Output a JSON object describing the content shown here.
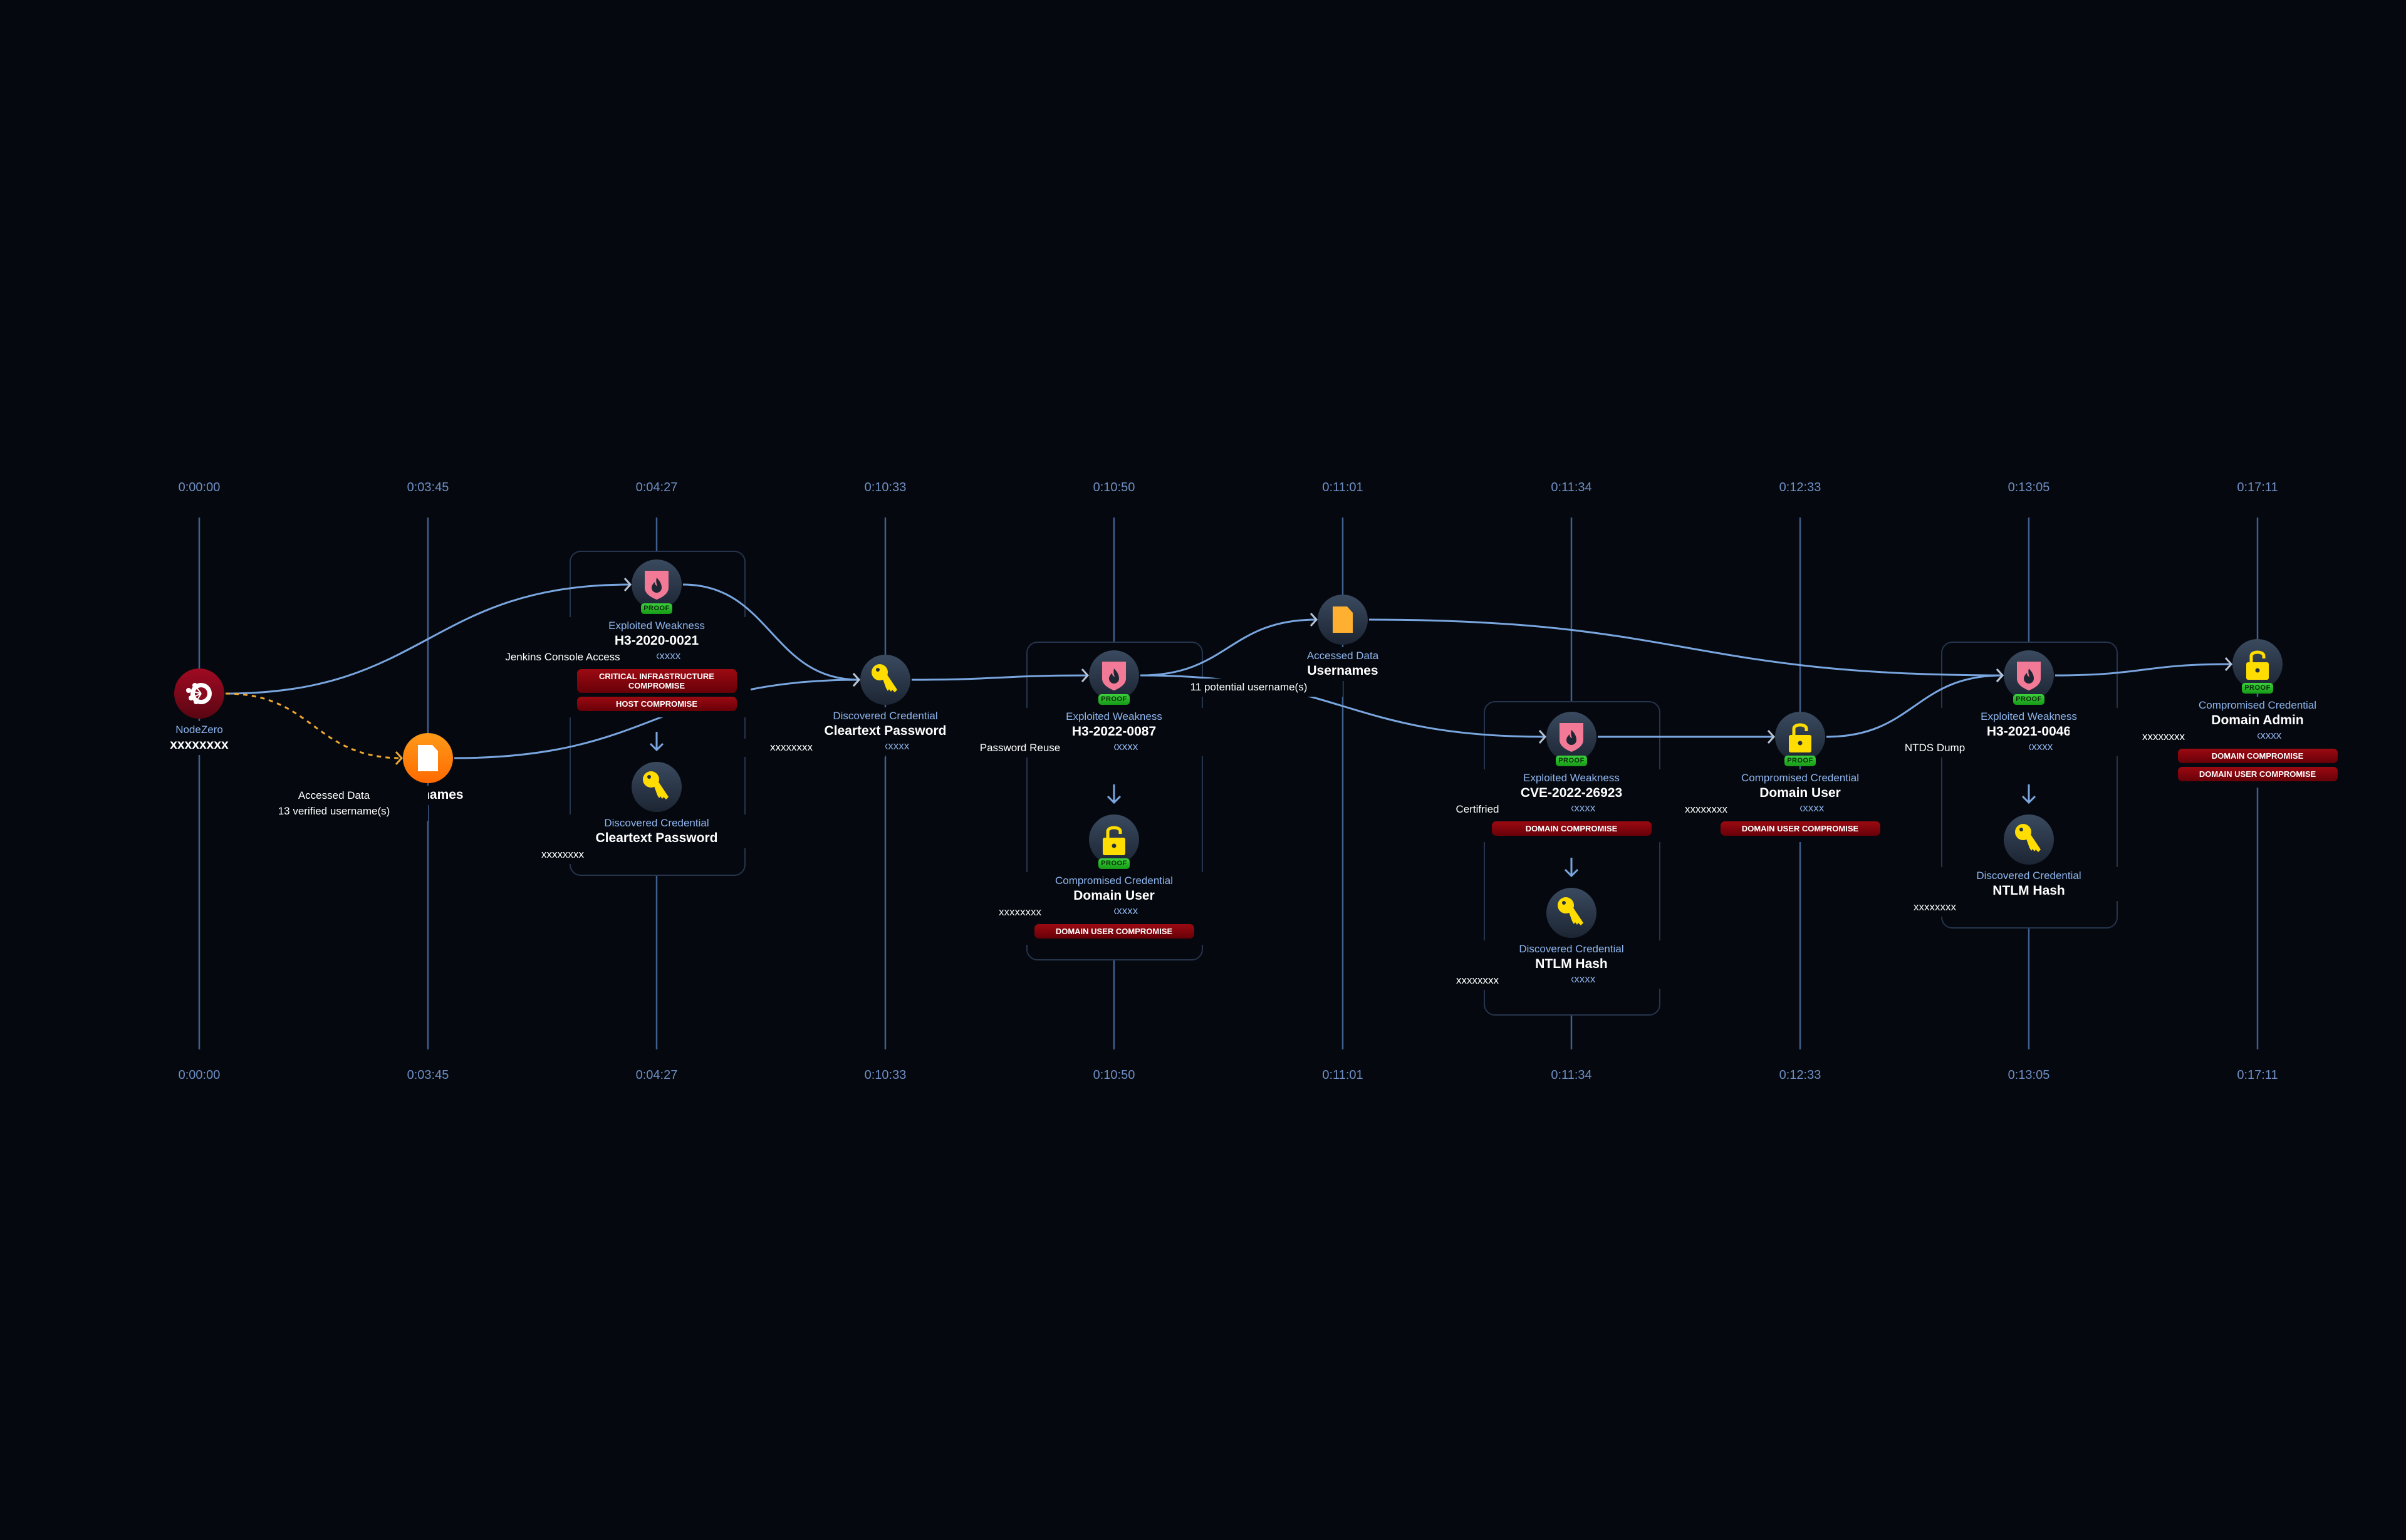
{
  "timeline": {
    "times": [
      "0:00:00",
      "0:03:45",
      "0:04:27",
      "0:10:33",
      "0:10:50",
      "0:11:01",
      "0:11:34",
      "0:12:33",
      "0:13:05",
      "0:17:11"
    ]
  },
  "colors": {
    "background": "#05090f",
    "timeline_line": "#3f5f8f",
    "edge": "#7aa6e0",
    "edge_dashed": "#f0a830",
    "category_text": "#8fb5ee",
    "badge_red": "#9c0a12",
    "proof_green": "#3bd13b",
    "shield_pink": "#f27a96",
    "credential_yellow": "#ffdd00",
    "data_orange": "#ffb030"
  },
  "proof_label": "PROOF",
  "nodes": [
    {
      "id": "nodezero",
      "icon": "nodezero-logo-icon",
      "proof": false,
      "lines": [
        {
          "text": "NodeZero",
          "kind": "category"
        },
        {
          "text": "xxxxxxxx",
          "kind": "title"
        }
      ],
      "badges": []
    },
    {
      "id": "usernames-13",
      "icon": "file-icon-orange",
      "proof": false,
      "lines": [
        {
          "text": "Accessed Data",
          "kind": "text"
        },
        {
          "text": "Usernames",
          "kind": "title"
        },
        {
          "text": "13 verified username(s)",
          "kind": "text"
        }
      ],
      "badges": []
    },
    {
      "id": "h3-2020-0021",
      "icon": "shield-flame-icon",
      "proof": true,
      "lines": [
        {
          "text": "Exploited Weakness",
          "kind": "category"
        },
        {
          "text": "H3-2020-0021",
          "kind": "title"
        },
        {
          "text": "Jenkins Console Access",
          "kind": "text"
        },
        {
          "text": "xxxxxxxxx",
          "kind": "muted"
        }
      ],
      "badges": [
        "CRITICAL INFRASTRUCTURE COMPROMISE",
        "HOST COMPROMISE"
      ]
    },
    {
      "id": "cleartext-password-1",
      "icon": "key-icon",
      "proof": false,
      "lines": [
        {
          "text": "Discovered Credential",
          "kind": "category"
        },
        {
          "text": "Cleartext Password",
          "kind": "title"
        },
        {
          "text": "xxxxxxxx",
          "kind": "text"
        }
      ],
      "badges": []
    },
    {
      "id": "cleartext-password-2",
      "icon": "key-icon",
      "proof": false,
      "lines": [
        {
          "text": "Discovered Credential",
          "kind": "category"
        },
        {
          "text": "Cleartext Password",
          "kind": "title"
        },
        {
          "text": "xxxxxxxx",
          "kind": "text"
        },
        {
          "text": "xxxxxxxxx",
          "kind": "muted"
        }
      ],
      "badges": []
    },
    {
      "id": "h3-2022-0087",
      "icon": "shield-flame-icon",
      "proof": true,
      "lines": [
        {
          "text": "Exploited Weakness",
          "kind": "category"
        },
        {
          "text": "H3-2022-0087",
          "kind": "title"
        },
        {
          "text": "Password Reuse",
          "kind": "text"
        },
        {
          "text": "xxxxxxxxx",
          "kind": "muted"
        }
      ],
      "badges": []
    },
    {
      "id": "domain-user-1",
      "icon": "lock-open-icon",
      "proof": true,
      "lines": [
        {
          "text": "Compromised Credential",
          "kind": "category"
        },
        {
          "text": "Domain User",
          "kind": "title"
        },
        {
          "text": "xxxxxxxx",
          "kind": "text"
        },
        {
          "text": "xxxxxxxxx",
          "kind": "muted"
        }
      ],
      "badges": [
        "DOMAIN USER COMPROMISE"
      ]
    },
    {
      "id": "usernames-11",
      "icon": "file-icon",
      "proof": false,
      "lines": [
        {
          "text": "Accessed Data",
          "kind": "category"
        },
        {
          "text": "Usernames",
          "kind": "title"
        },
        {
          "text": "11 potential username(s)",
          "kind": "text"
        }
      ],
      "badges": []
    },
    {
      "id": "cve-2022-26923",
      "icon": "shield-flame-icon",
      "proof": true,
      "lines": [
        {
          "text": "Exploited Weakness",
          "kind": "category"
        },
        {
          "text": "CVE-2022-26923",
          "kind": "title"
        },
        {
          "text": "Certifried",
          "kind": "text"
        },
        {
          "text": "xxxxxxxxx",
          "kind": "muted"
        }
      ],
      "badges": [
        "DOMAIN COMPROMISE"
      ]
    },
    {
      "id": "ntlm-hash-1",
      "icon": "key-icon",
      "proof": false,
      "lines": [
        {
          "text": "Discovered Credential",
          "kind": "category"
        },
        {
          "text": "NTLM Hash",
          "kind": "title"
        },
        {
          "text": "xxxxxxxx",
          "kind": "text"
        },
        {
          "text": "xxxxxxxxx",
          "kind": "muted"
        }
      ],
      "badges": []
    },
    {
      "id": "domain-user-2",
      "icon": "lock-open-icon",
      "proof": true,
      "lines": [
        {
          "text": "Compromised Credential",
          "kind": "category"
        },
        {
          "text": "Domain User",
          "kind": "title"
        },
        {
          "text": "xxxxxxxx",
          "kind": "text"
        },
        {
          "text": "xxxxxxxxx",
          "kind": "muted"
        }
      ],
      "badges": [
        "DOMAIN USER COMPROMISE"
      ]
    },
    {
      "id": "h3-2021-0046",
      "icon": "shield-flame-icon",
      "proof": true,
      "lines": [
        {
          "text": "Exploited Weakness",
          "kind": "category"
        },
        {
          "text": "H3-2021-0046",
          "kind": "title"
        },
        {
          "text": "NTDS Dump",
          "kind": "text"
        },
        {
          "text": "xxxxxxxxx",
          "kind": "muted"
        }
      ],
      "badges": []
    },
    {
      "id": "ntlm-hash-2",
      "icon": "key-icon",
      "proof": false,
      "lines": [
        {
          "text": "Discovered Credential",
          "kind": "category"
        },
        {
          "text": "NTLM Hash",
          "kind": "title"
        },
        {
          "text": "xxxxxxxx",
          "kind": "text"
        }
      ],
      "badges": []
    },
    {
      "id": "domain-admin",
      "icon": "lock-open-icon",
      "proof": true,
      "lines": [
        {
          "text": "Compromised Credential",
          "kind": "category"
        },
        {
          "text": "Domain Admin",
          "kind": "title"
        },
        {
          "text": "xxxxxxxx",
          "kind": "text"
        },
        {
          "text": "xxxxxxxxx",
          "kind": "muted"
        }
      ],
      "badges": [
        "DOMAIN COMPROMISE",
        "DOMAIN USER COMPROMISE"
      ]
    }
  ],
  "edges": [
    {
      "from": "nodezero",
      "to": "h3-2020-0021",
      "style": "solid"
    },
    {
      "from": "nodezero",
      "to": "usernames-13",
      "style": "dashed"
    },
    {
      "from": "h3-2020-0021",
      "to": "cleartext-password-2",
      "style": "solid"
    },
    {
      "from": "usernames-13",
      "to": "cleartext-password-2",
      "style": "solid"
    },
    {
      "from": "cleartext-password-2",
      "to": "h3-2022-0087",
      "style": "solid"
    },
    {
      "from": "h3-2022-0087",
      "to": "usernames-11",
      "style": "solid"
    },
    {
      "from": "h3-2022-0087",
      "to": "cve-2022-26923",
      "style": "solid"
    },
    {
      "from": "usernames-11",
      "to": "h3-2021-0046",
      "style": "solid"
    },
    {
      "from": "cve-2022-26923",
      "to": "domain-user-2",
      "style": "solid"
    },
    {
      "from": "domain-user-2",
      "to": "h3-2021-0046",
      "style": "solid"
    },
    {
      "from": "h3-2021-0046",
      "to": "domain-admin",
      "style": "solid"
    }
  ],
  "steps": [
    {
      "from": "h3-2020-0021",
      "to": "cleartext-password-1"
    },
    {
      "from": "h3-2022-0087",
      "to": "domain-user-1"
    },
    {
      "from": "cve-2022-26923",
      "to": "ntlm-hash-1"
    },
    {
      "from": "h3-2021-0046",
      "to": "ntlm-hash-2"
    }
  ]
}
